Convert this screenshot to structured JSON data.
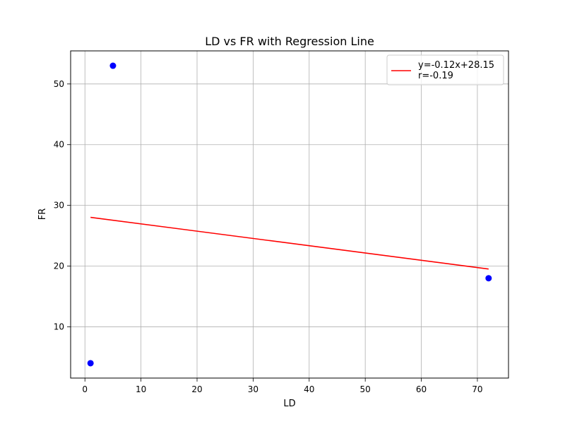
{
  "chart_data": {
    "type": "scatter",
    "title": "LD vs FR with Regression Line",
    "xlabel": "LD",
    "ylabel": "FR",
    "xlim": [
      -2.55,
      75.55
    ],
    "ylim": [
      1.55,
      55.45
    ],
    "xticks": [
      0,
      10,
      20,
      30,
      40,
      50,
      60,
      70
    ],
    "yticks": [
      10,
      20,
      30,
      40,
      50
    ],
    "grid": true,
    "legend_position": "top-right",
    "series": [
      {
        "type": "scatter",
        "color": "#0000ff",
        "points": [
          {
            "x": 1,
            "y": 4
          },
          {
            "x": 5,
            "y": 53
          },
          {
            "x": 72,
            "y": 18
          }
        ]
      },
      {
        "type": "line",
        "name": "y=-0.12x+28.15\nr=-0.19",
        "color": "#ff0000",
        "points": [
          {
            "x": 1,
            "y": 28.03
          },
          {
            "x": 72,
            "y": 19.51
          }
        ]
      }
    ]
  }
}
